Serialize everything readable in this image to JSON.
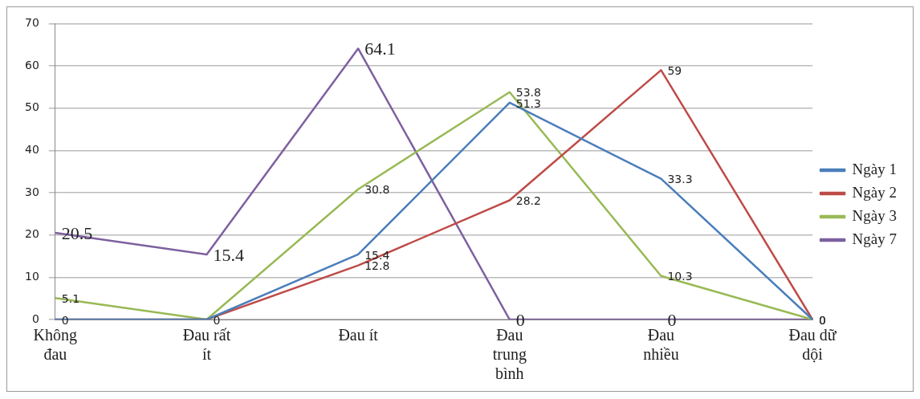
{
  "chart_data": {
    "type": "line",
    "categories": [
      "Không đau",
      "Đau rất ít",
      "Đau ít",
      "Đau trung bình",
      "Đau nhiều",
      "Đau dữ dội"
    ],
    "ylim": [
      0,
      70
    ],
    "yticks": [
      0,
      10,
      20,
      30,
      40,
      50,
      60,
      70
    ],
    "grid": "y",
    "legend": "right",
    "marker": "none",
    "series": [
      {
        "name": "Ngày 1",
        "color": "#4a7ebb",
        "values": [
          0,
          0,
          15.4,
          51.3,
          33.3,
          0
        ],
        "value_labels": [
          null,
          null,
          "15.4",
          "51.3",
          "33.3",
          "0"
        ]
      },
      {
        "name": "Ngày 2",
        "color": "#be4b48",
        "values": [
          0,
          0,
          12.8,
          28.2,
          59,
          0
        ],
        "value_labels": [
          "0",
          "0",
          "12.8",
          "28.2",
          "59",
          "0"
        ]
      },
      {
        "name": "Ngày 3",
        "color": "#98b954",
        "values": [
          5.1,
          0,
          30.8,
          53.8,
          10.3,
          0
        ],
        "value_labels": [
          "5.1",
          null,
          "30.8",
          "53.8",
          "10.3",
          null
        ]
      },
      {
        "name": "Ngày 7",
        "color": "#7d60a0",
        "values": [
          20.5,
          15.4,
          64.1,
          0,
          0,
          0
        ],
        "value_labels": [
          "20.5",
          "15.4",
          "64.1",
          "0",
          "0",
          null
        ]
      }
    ]
  }
}
